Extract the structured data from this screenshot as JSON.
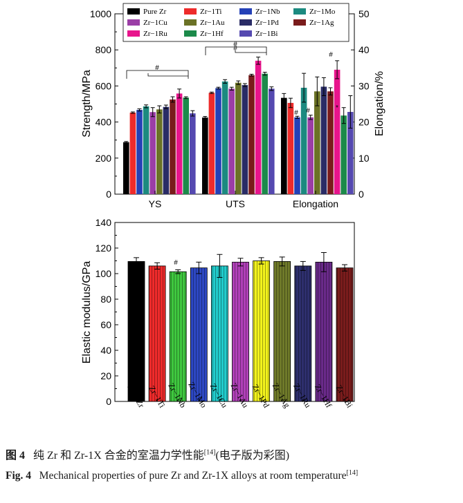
{
  "colors": {
    "Pure Zr": "#000000",
    "Zr-1Ti": "#ee2b2b",
    "Zr-1Nb": "#2441b7",
    "Zr-1Mo": "#1c8a80",
    "Zr-1Cu": "#9b3ea6",
    "Zr-1Au": "#6b7226",
    "Zr-1Pd": "#2a2c66",
    "Zr-1Ag": "#7a1c1c",
    "Zr-1Ru": "#e8158c",
    "Zr-1Hf": "#1c8a4a",
    "Zr-1Bi": "#5549b0",
    "modulus_bars": [
      "#000000",
      "#ee2b2b",
      "#3fc83f",
      "#2d48c4",
      "#21cccc",
      "#b040b8",
      "#f2f21c",
      "#6f7a2a",
      "#2e2f6e",
      "#6a2a8a",
      "#7a1c1c"
    ]
  },
  "chart_data": [
    {
      "type": "bar",
      "ylabel": "Strength/MPa",
      "y2label": "Elongation/%",
      "ylim": [
        0,
        1000
      ],
      "y2lim": [
        0,
        50
      ],
      "yticks": [
        "0",
        "200",
        "400",
        "600",
        "800",
        "1000"
      ],
      "y2ticks": [
        "0",
        "10",
        "20",
        "30",
        "40",
        "50"
      ],
      "categories": [
        "YS",
        "UTS",
        "Elongation"
      ],
      "legend": [
        "Pure Zr",
        "Zr−1Ti",
        "Zr−1Nb",
        "Zr−1Mo",
        "Zr−1Cu",
        "Zr−1Au",
        "Zr−1Pd",
        "Zr−1Ag",
        "Zr−1Ru",
        "Zr−1Hf",
        "Zr−1Bi"
      ],
      "legend_position": "top",
      "series": [
        {
          "name": "Pure Zr",
          "YS": 288,
          "YS_err": 4,
          "UTS": 425,
          "UTS_err": 6,
          "Elongation": 26.7,
          "Elongation_err": 1.2
        },
        {
          "name": "Zr−1Ti",
          "YS": 452,
          "YS_err": 4,
          "UTS": 562,
          "UTS_err": 4,
          "Elongation": 25.3,
          "Elongation_err": 1.3
        },
        {
          "name": "Zr−1Nb",
          "YS": 467,
          "YS_err": 6,
          "UTS": 588,
          "UTS_err": 5,
          "Elongation": 21.3,
          "Elongation_err": 0.3
        },
        {
          "name": "Zr−1Mo",
          "YS": 487,
          "YS_err": 8,
          "UTS": 625,
          "UTS_err": 10,
          "Elongation": 29.5,
          "Elongation_err": 4.0
        },
        {
          "name": "Zr−1Cu",
          "YS": 455,
          "YS_err": 25,
          "UTS": 585,
          "UTS_err": 8,
          "Elongation": 21.3,
          "Elongation_err": 0.6
        },
        {
          "name": "Zr−1Au",
          "YS": 470,
          "YS_err": 20,
          "UTS": 618,
          "UTS_err": 10,
          "Elongation": 28.5,
          "Elongation_err": 4.0
        },
        {
          "name": "Zr−1Pd",
          "YS": 484,
          "YS_err": 10,
          "UTS": 605,
          "UTS_err": 8,
          "Elongation": 29.8,
          "Elongation_err": 2.5
        },
        {
          "name": "Zr−1Ag",
          "YS": 525,
          "YS_err": 15,
          "UTS": 660,
          "UTS_err": 5,
          "Elongation": 28.5,
          "Elongation_err": 1.0
        },
        {
          "name": "Zr−1Ru",
          "YS": 558,
          "YS_err": 25,
          "UTS": 740,
          "UTS_err": 20,
          "Elongation": 34.5,
          "Elongation_err": 2.5
        },
        {
          "name": "Zr−1Hf",
          "YS": 535,
          "YS_err": 5,
          "UTS": 668,
          "UTS_err": 8,
          "Elongation": 21.8,
          "Elongation_err": 2.2
        },
        {
          "name": "Zr−1Bi",
          "YS": 448,
          "YS_err": 15,
          "UTS": 585,
          "UTS_err": 10,
          "Elongation": 22.8,
          "Elongation_err": 4.5
        }
      ],
      "annotations": [
        "#",
        "#",
        "#",
        "#",
        "#",
        "#",
        "*"
      ]
    },
    {
      "type": "bar",
      "ylabel": "Elastic modulus/GPa",
      "ylim": [
        0,
        140
      ],
      "yticks": [
        "0",
        "20",
        "40",
        "60",
        "80",
        "100",
        "120",
        "140"
      ],
      "categories": [
        "Pure Zr",
        "Zr−1Ti",
        "Zr−1Nb",
        "Zr−1Mo",
        "Zr−1Cu",
        "Zr−1Au",
        "Zr−1Pd",
        "Zr−1Ag",
        "Zr−1Ru",
        "Zr−1Hf",
        "Zr−1Bi"
      ],
      "values": [
        109.5,
        106.0,
        101.5,
        104.5,
        106.0,
        109.0,
        110.0,
        109.5,
        106.0,
        109.0,
        104.5
      ],
      "errors": [
        3.0,
        2.5,
        1.5,
        4.5,
        9.0,
        3.0,
        2.5,
        3.5,
        3.5,
        7.5,
        2.5
      ],
      "annotations": [
        "#"
      ]
    }
  ],
  "caption": {
    "cn_label": "图 4",
    "cn_text": "纯 Zr 和 Zr-1X 合金的室温力学性能",
    "cn_ref": "[14]",
    "cn_tail": "(电子版为彩图)",
    "en_label": "Fig. 4",
    "en_text": "Mechanical properties of pure Zr and Zr-1X alloys at room temperature",
    "en_ref": "[14]"
  }
}
